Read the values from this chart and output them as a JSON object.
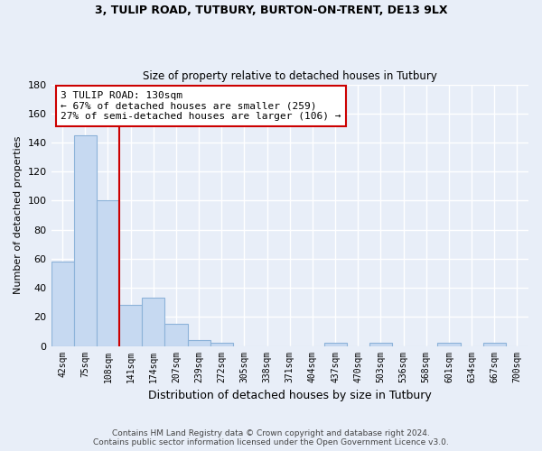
{
  "title1": "3, TULIP ROAD, TUTBURY, BURTON-ON-TRENT, DE13 9LX",
  "title2": "Size of property relative to detached houses in Tutbury",
  "xlabel": "Distribution of detached houses by size in Tutbury",
  "ylabel": "Number of detached properties",
  "footnote1": "Contains HM Land Registry data © Crown copyright and database right 2024.",
  "footnote2": "Contains public sector information licensed under the Open Government Licence v3.0.",
  "bar_labels": [
    "42sqm",
    "75sqm",
    "108sqm",
    "141sqm",
    "174sqm",
    "207sqm",
    "239sqm",
    "272sqm",
    "305sqm",
    "338sqm",
    "371sqm",
    "404sqm",
    "437sqm",
    "470sqm",
    "503sqm",
    "536sqm",
    "568sqm",
    "601sqm",
    "634sqm",
    "667sqm",
    "700sqm"
  ],
  "bar_values": [
    58,
    145,
    100,
    28,
    33,
    15,
    4,
    2,
    0,
    0,
    0,
    0,
    2,
    0,
    2,
    0,
    0,
    2,
    0,
    2,
    0
  ],
  "bar_color": "#c6d9f1",
  "bar_edge_color": "#8db3d9",
  "background_color": "#e8eef8",
  "grid_color": "#ffffff",
  "vline_color": "#cc0000",
  "annotation_line1": "3 TULIP ROAD: 130sqm",
  "annotation_line2": "← 67% of detached houses are smaller (259)",
  "annotation_line3": "27% of semi-detached houses are larger (106) →",
  "annotation_box_color": "#ffffff",
  "annotation_box_edge": "#cc0000",
  "ylim": [
    0,
    180
  ],
  "yticks": [
    0,
    20,
    40,
    60,
    80,
    100,
    120,
    140,
    160,
    180
  ]
}
